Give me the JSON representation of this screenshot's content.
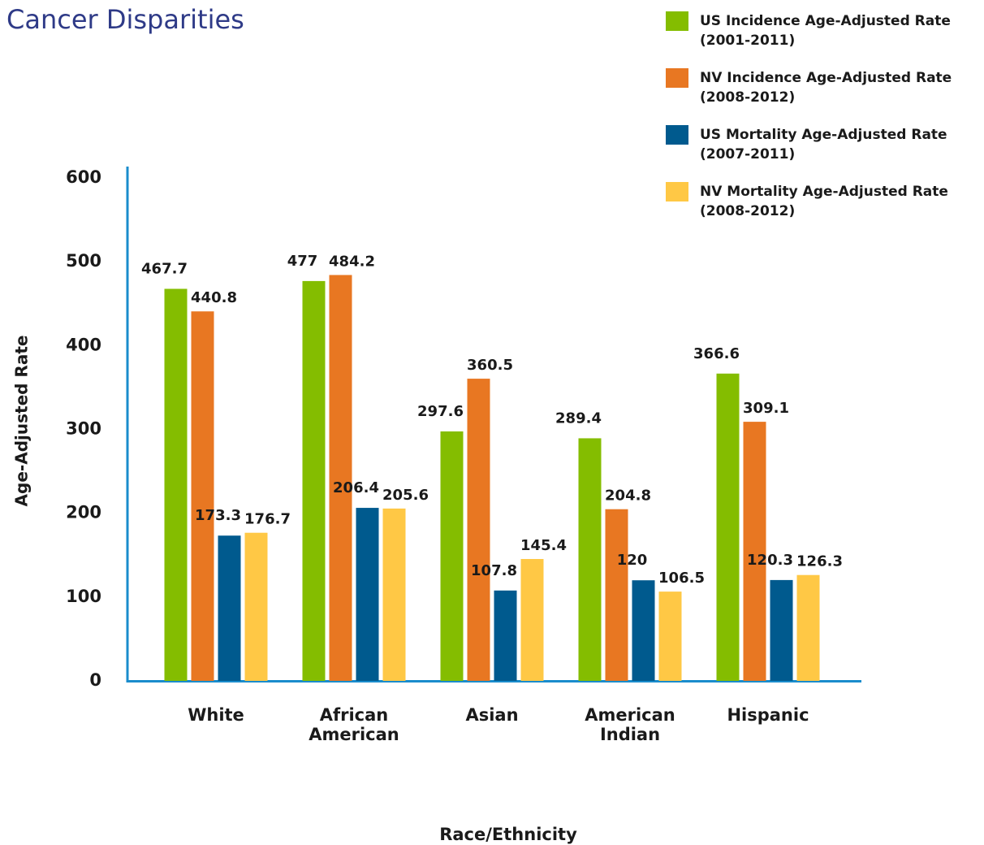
{
  "chart_data": {
    "type": "bar",
    "title": "Cancer Disparities",
    "xlabel": "Race/Ethnicity",
    "ylabel": "Age-Adjusted Rate",
    "categories": [
      "White",
      "African American",
      "Asian",
      "American Indian",
      "Hispanic"
    ],
    "series": [
      {
        "name": "US Incidence Age-Adjusted Rate (2001-2011)",
        "color": "#84bd00",
        "values": [
          467.7,
          477,
          297.6,
          289.4,
          366.6
        ]
      },
      {
        "name": "NV Incidence Age-Adjusted Rate (2008-2012)",
        "color": "#e87722",
        "values": [
          440.8,
          484.2,
          360.5,
          204.8,
          309.1
        ]
      },
      {
        "name": "US Mortality Age-Adjusted Rate (2007-2011)",
        "color": "#005a8e",
        "values": [
          173.3,
          206.4,
          107.8,
          120,
          120.3
        ]
      },
      {
        "name": "NV Mortality Age-Adjusted Rate (2008-2012)",
        "color": "#ffc845",
        "values": [
          176.7,
          205.6,
          145.4,
          106.5,
          126.3
        ]
      }
    ],
    "ylim": [
      0,
      600
    ],
    "yticks": [
      0,
      100,
      200,
      300,
      400,
      500,
      600
    ],
    "grid": false,
    "legend": "top-right"
  }
}
